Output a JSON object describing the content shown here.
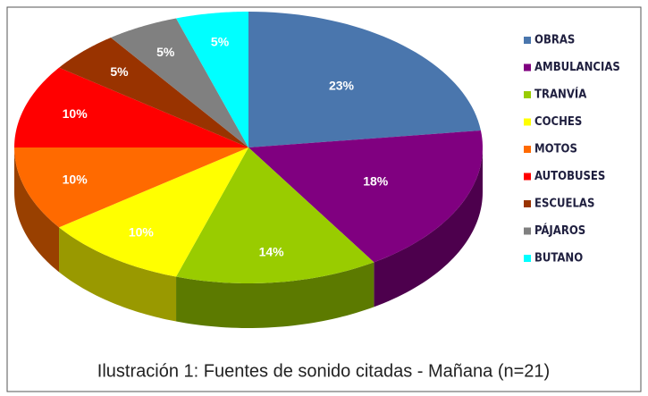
{
  "chart_data": {
    "type": "pie",
    "categories": [
      "OBRAS",
      "AMBULANCIAS",
      "TRANVÍA",
      "COCHES",
      "MOTOS",
      "AUTOBUSES",
      "ESCUELAS",
      "PÁJAROS",
      "BUTANO"
    ],
    "values": [
      23,
      18,
      14,
      10,
      10,
      10,
      5,
      5,
      5
    ],
    "value_labels": [
      "23%",
      "18%",
      "14%",
      "10%",
      "10%",
      "10%",
      "5%",
      "5%",
      "5%"
    ],
    "colors": [
      "#4a76ad",
      "#800080",
      "#99cc00",
      "#ffff00",
      "#ff6a00",
      "#ff0000",
      "#993300",
      "#808080",
      "#00ffff"
    ],
    "caption": "Ilustración 1: Fuentes de sonido citadas - Mañana (n=21)"
  }
}
